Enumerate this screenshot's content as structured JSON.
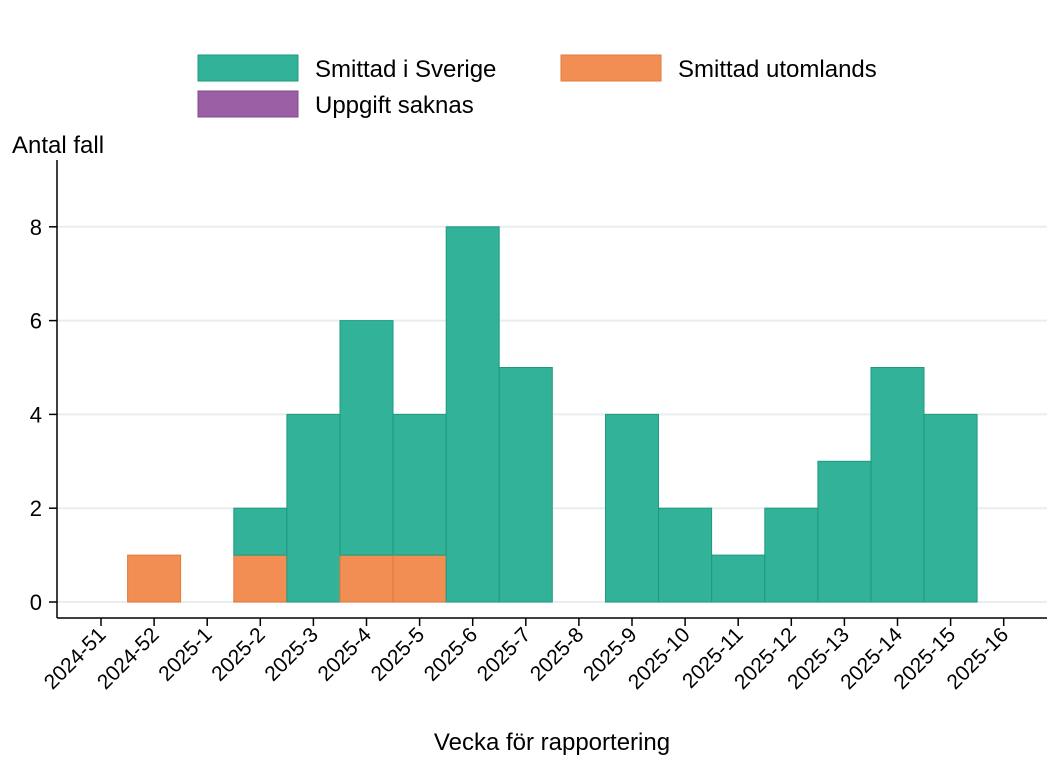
{
  "chart_data": {
    "type": "bar",
    "stacked": true,
    "xlabel": "Vecka för rapportering",
    "ylabel": "Antal fall",
    "ylim": [
      0,
      9.4
    ],
    "yticks": [
      0,
      2,
      4,
      6,
      8
    ],
    "grid": "horizontal",
    "legend_position": "top",
    "categories": [
      "2024-51",
      "2024-52",
      "2025-1",
      "2025-2",
      "2025-3",
      "2025-4",
      "2025-5",
      "2025-6",
      "2025-7",
      "2025-8",
      "2025-9",
      "2025-10",
      "2025-11",
      "2025-12",
      "2025-13",
      "2025-14",
      "2025-15",
      "2025-16"
    ],
    "series": [
      {
        "name": "Smittad utomlands",
        "color": "#f28e53",
        "values": [
          0,
          1,
          0,
          1,
          0,
          1,
          1,
          0,
          0,
          0,
          0,
          0,
          0,
          0,
          0,
          0,
          0,
          0
        ]
      },
      {
        "name": "Smittad i Sverige",
        "color": "#32b298",
        "values": [
          0,
          0,
          0,
          1,
          4,
          5,
          3,
          8,
          5,
          0,
          4,
          2,
          1,
          2,
          3,
          5,
          4,
          0
        ]
      },
      {
        "name": "Uppgift saknas",
        "color": "#9b5fa5",
        "values": [
          0,
          0,
          0,
          0,
          0,
          0,
          0,
          0,
          0,
          0,
          0,
          0,
          0,
          0,
          0,
          0,
          0,
          0
        ]
      }
    ],
    "legend_order": [
      "Smittad i Sverige",
      "Smittad utomlands",
      "Uppgift saknas"
    ]
  }
}
